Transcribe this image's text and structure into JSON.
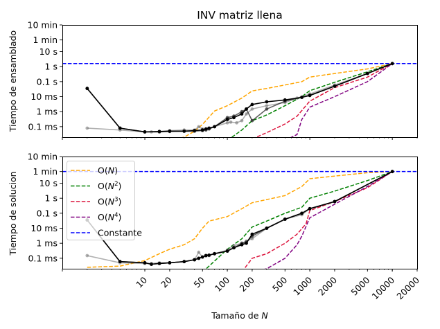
{
  "title": "INV matriz llena",
  "xlabel": "Tamaño de ",
  "xlabel_var": "N",
  "chart_data": [
    {
      "type": "line",
      "name": "top",
      "title": "INV matriz llena",
      "ylabel": "Tiempo de ensamblado",
      "xscale": "log",
      "yscale": "log",
      "xlim": [
        1,
        20000
      ],
      "ylim": [
        2e-05,
        600
      ],
      "ytick_values": [
        0.0001,
        0.001,
        0.01,
        0.1,
        1,
        10,
        60,
        600
      ],
      "ytick_labels": [
        "0.1 ms",
        "1 ms",
        "10 ms",
        "0.1 s",
        "1 s",
        "10 s",
        "1 min",
        "10 min"
      ],
      "guides": [
        {
          "name": "O(N)",
          "color": "#ffa500",
          "x": [
            20,
            30,
            40,
            50,
            70,
            100,
            150,
            200,
            300,
            500,
            800,
            1000,
            2000,
            5000,
            10000
          ],
          "y": [
            1.2e-05,
            2e-05,
            5e-05,
            0.00014,
            0.0011,
            0.0025,
            0.008,
            0.024,
            0.035,
            0.06,
            0.1,
            0.2,
            0.35,
            0.7,
            1.6
          ]
        },
        {
          "name": "O(N²)",
          "color": "#008000",
          "x": [
            100,
            150,
            200,
            300,
            500,
            800,
            1000,
            2000,
            5000,
            10000
          ],
          "y": [
            1.2e-05,
            6e-05,
            0.00025,
            0.0006,
            0.0025,
            0.01,
            0.025,
            0.09,
            0.45,
            1.6
          ]
        },
        {
          "name": "O(N³)",
          "color": "#dc143c",
          "x": [
            200,
            300,
            500,
            700,
            1000,
            2000,
            5000,
            10000
          ],
          "y": [
            1.5e-05,
            4e-05,
            0.00015,
            0.0005,
            0.005,
            0.04,
            0.2,
            1.6
          ]
        },
        {
          "name": "O(N⁴)",
          "color": "#800080",
          "x": [
            500,
            700,
            800,
            1000,
            2000,
            5000,
            10000
          ],
          "y": [
            1.2e-05,
            3e-05,
            0.0003,
            0.002,
            0.01,
            0.1,
            1.6
          ]
        }
      ],
      "constant": {
        "name": "Constante",
        "color": "#0000ff",
        "y": 1.6
      },
      "series": [
        {
          "name": "",
          "color": "#707070",
          "x": [
            2,
            5,
            10,
            12,
            15,
            20,
            30,
            40,
            45,
            50,
            55,
            60,
            70,
            100,
            110,
            130,
            150,
            170,
            200,
            300,
            500,
            700,
            1000,
            2000,
            5000,
            10000
          ],
          "y": [
            8e-05,
            6e-05,
            4.5e-05,
            4.5e-05,
            4.6e-05,
            5.5e-05,
            6e-05,
            6e-05,
            0.0001,
            7e-05,
            7e-05,
            8e-05,
            0.0001,
            0.00018,
            0.0002,
            0.00018,
            0.00025,
            0.0007,
            0.0015,
            0.0025,
            0.004,
            0.008,
            0.015,
            0.06,
            0.35,
            1.6
          ]
        },
        {
          "name": "",
          "color": "#2a2a2a",
          "x": [
            2,
            5,
            10,
            15,
            20,
            30,
            40,
            50,
            55,
            60,
            70,
            100,
            120,
            150,
            170,
            200,
            300,
            500,
            800,
            1000,
            2000,
            5000,
            10000
          ],
          "y": [
            0.035,
            8e-05,
            4.5e-05,
            4.5e-05,
            4.8e-05,
            5e-05,
            5e-05,
            5.5e-05,
            6e-05,
            7e-05,
            0.0001,
            0.0004,
            0.0005,
            0.001,
            0.0015,
            0.00025,
            0.0015,
            0.005,
            0.009,
            0.012,
            0.05,
            0.35,
            1.6
          ]
        },
        {
          "name": "",
          "color": "#000000",
          "x": [
            2,
            5,
            10,
            15,
            20,
            30,
            40,
            50,
            55,
            60,
            70,
            100,
            120,
            150,
            170,
            200,
            300,
            500,
            800,
            1000,
            2000,
            5000,
            10000
          ],
          "y": [
            0.035,
            8e-05,
            4.5e-05,
            4.8e-05,
            5e-05,
            5e-05,
            5.5e-05,
            6e-05,
            7e-05,
            8e-05,
            0.0001,
            0.0003,
            0.0004,
            0.0007,
            0.0015,
            0.003,
            0.0045,
            0.006,
            0.009,
            0.012,
            0.05,
            0.35,
            1.6
          ]
        }
      ]
    },
    {
      "type": "line",
      "name": "bottom",
      "title": "",
      "ylabel": "Tiempo de solucion",
      "xscale": "log",
      "yscale": "log",
      "xlim": [
        1,
        20000
      ],
      "ylim": [
        2e-05,
        600
      ],
      "ytick_values": [
        0.0001,
        0.001,
        0.01,
        0.1,
        1,
        10,
        60,
        600
      ],
      "ytick_labels": [
        "0.1 ms",
        "1 ms",
        "10 ms",
        "0.1 s",
        "1 s",
        "10 s",
        "1 min",
        "10 min"
      ],
      "xtick_values": [
        10,
        20,
        50,
        100,
        200,
        500,
        1000,
        2000,
        5000,
        10000,
        20000
      ],
      "xtick_labels": [
        "10",
        "20",
        "50",
        "100",
        "200",
        "500",
        "1000",
        "2000",
        "5000",
        "10000",
        "20000"
      ],
      "legend": {
        "placement": "upper-left",
        "entries": [
          {
            "label": "O(N)",
            "func": "O(",
            "var": "N",
            "sup": "",
            "close": ")",
            "color": "#ffa500",
            "dash": true
          },
          {
            "label": "O(N²)",
            "func": "O(",
            "var": "N",
            "sup": "2",
            "close": ")",
            "color": "#008000",
            "dash": true
          },
          {
            "label": "O(N³)",
            "func": "O(",
            "var": "N",
            "sup": "3",
            "close": ")",
            "color": "#dc143c",
            "dash": true
          },
          {
            "label": "O(N⁴)",
            "func": "O(",
            "var": "N",
            "sup": "4",
            "close": ")",
            "color": "#800080",
            "dash": true
          },
          {
            "label": "Constante",
            "func": "Constante",
            "var": "",
            "sup": "",
            "close": "",
            "color": "#0000ff",
            "dash": true
          }
        ]
      },
      "guides": [
        {
          "name": "O(N)",
          "color": "#ffa500",
          "x": [
            2,
            5,
            10,
            15,
            20,
            30,
            40,
            50,
            60,
            100,
            150,
            200,
            500,
            800,
            1000,
            2000,
            5000,
            10000
          ],
          "y": [
            2.5e-05,
            3e-05,
            7e-05,
            0.0002,
            0.0004,
            0.0008,
            0.002,
            0.01,
            0.03,
            0.06,
            0.2,
            0.5,
            1.5,
            6,
            20,
            30,
            50,
            60
          ]
        },
        {
          "name": "O(N²)",
          "color": "#008000",
          "x": [
            50,
            60,
            100,
            150,
            200,
            300,
            500,
            800,
            1000,
            2000,
            5000,
            10000
          ],
          "y": [
            1.2e-05,
            3e-05,
            0.0004,
            0.002,
            0.012,
            0.03,
            0.1,
            0.25,
            1,
            3,
            15,
            60
          ]
        },
        {
          "name": "O(N³)",
          "color": "#dc143c",
          "x": [
            150,
            200,
            300,
            500,
            700,
            900,
            1000,
            2000,
            5000,
            10000
          ],
          "y": [
            1.2e-05,
            0.0001,
            0.0002,
            0.001,
            0.004,
            0.02,
            0.15,
            0.6,
            5,
            60
          ]
        },
        {
          "name": "O(N⁴)",
          "color": "#800080",
          "x": [
            200,
            300,
            500,
            700,
            800,
            1000,
            2000,
            5000,
            10000
          ],
          "y": [
            1.2e-05,
            2e-05,
            0.0001,
            0.0008,
            0.003,
            0.05,
            0.4,
            6,
            60
          ]
        }
      ],
      "constant": {
        "name": "Constante",
        "color": "#0000ff",
        "y": 60
      },
      "series": [
        {
          "name": "",
          "color": "#707070",
          "x": [
            2,
            5,
            10,
            12,
            15,
            20,
            30,
            40,
            45,
            50,
            55,
            60,
            70,
            100,
            120,
            150,
            170,
            200,
            300,
            500,
            800,
            1000,
            2000,
            10000
          ],
          "y": [
            0.00015,
            5e-05,
            4.5e-05,
            4.5e-05,
            5e-05,
            5e-05,
            6e-05,
            8e-05,
            0.00025,
            0.00012,
            0.00015,
            0.00015,
            0.0002,
            0.00035,
            0.0007,
            0.001,
            0.0014,
            0.002,
            0.01,
            0.04,
            0.08,
            0.2,
            0.6,
            60
          ]
        },
        {
          "name": "",
          "color": "#2a2a2a",
          "x": [
            2,
            5,
            10,
            12,
            15,
            20,
            30,
            40,
            45,
            50,
            55,
            60,
            70,
            100,
            120,
            150,
            170,
            200,
            300,
            500,
            800,
            1000,
            2000,
            10000
          ],
          "y": [
            0.035,
            6e-05,
            5e-05,
            4e-05,
            4.5e-05,
            5e-05,
            6e-05,
            8e-05,
            0.0001,
            0.00012,
            0.00015,
            0.00016,
            0.0002,
            0.0003,
            0.0005,
            0.001,
            0.0012,
            0.003,
            0.01,
            0.04,
            0.1,
            0.2,
            0.6,
            60
          ]
        },
        {
          "name": "",
          "color": "#000000",
          "x": [
            2,
            5,
            10,
            12,
            15,
            20,
            30,
            40,
            45,
            50,
            55,
            60,
            70,
            100,
            120,
            150,
            170,
            200,
            300,
            500,
            800,
            1000,
            2000,
            10000
          ],
          "y": [
            0.035,
            6e-05,
            5e-05,
            4e-05,
            4.5e-05,
            5e-05,
            6e-05,
            8e-05,
            0.0001,
            0.00012,
            0.00015,
            0.00016,
            0.0002,
            0.0003,
            0.0005,
            0.0008,
            0.001,
            0.004,
            0.01,
            0.04,
            0.1,
            0.2,
            0.6,
            60
          ]
        }
      ]
    }
  ]
}
